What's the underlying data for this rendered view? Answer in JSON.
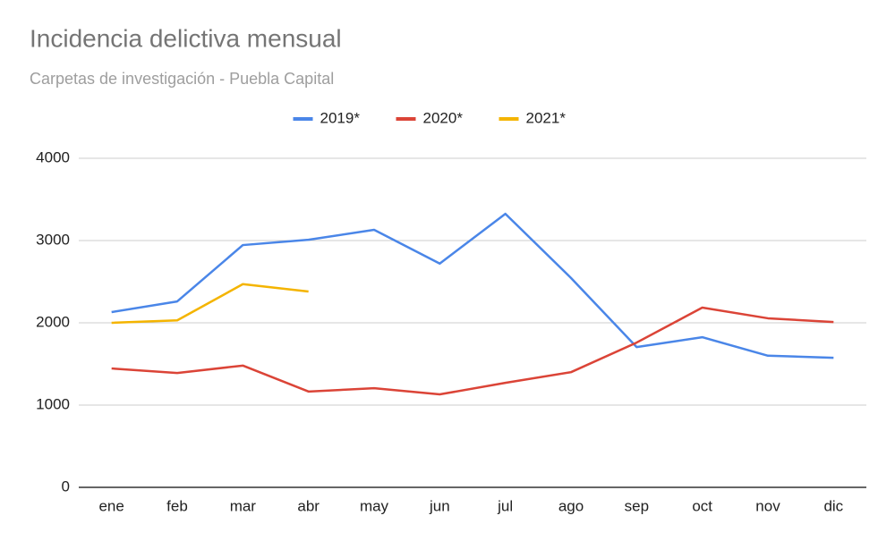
{
  "chart_data": {
    "type": "line",
    "title": "Incidencia delictiva mensual",
    "subtitle": "Carpetas de investigación - Puebla Capital",
    "categories": [
      "ene",
      "feb",
      "mar",
      "abr",
      "may",
      "jun",
      "jul",
      "ago",
      "sep",
      "oct",
      "nov",
      "dic"
    ],
    "series": [
      {
        "name": "2019*",
        "color": "#4a86e8",
        "values": [
          2130,
          2260,
          2945,
          3010,
          3130,
          2720,
          3325,
          2545,
          1705,
          1825,
          1600,
          1575
        ]
      },
      {
        "name": "2020*",
        "color": "#db4437",
        "values": [
          1445,
          1390,
          1480,
          1165,
          1205,
          1130,
          1270,
          1400,
          1760,
          2185,
          2055,
          2010
        ]
      },
      {
        "name": "2021*",
        "color": "#f4b400",
        "values": [
          2000,
          2030,
          2470,
          2380,
          null,
          null,
          null,
          null,
          null,
          null,
          null,
          null
        ]
      }
    ],
    "ylim": [
      0,
      4000
    ],
    "yticks": [
      0,
      1000,
      2000,
      3000,
      4000
    ],
    "grid": true,
    "legend": "top"
  }
}
